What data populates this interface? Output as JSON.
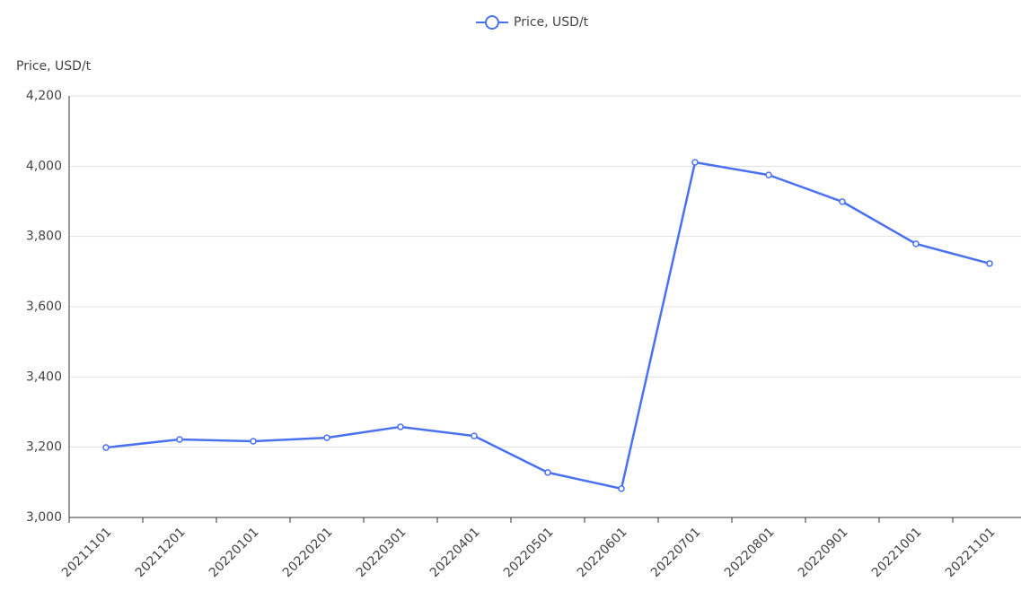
{
  "chart_data": {
    "type": "line",
    "y_axis_label": "Price, USD/t",
    "categories": [
      "20211101",
      "20211201",
      "20220101",
      "20220201",
      "20220301",
      "20220401",
      "20220501",
      "20220601",
      "20220701",
      "20220801",
      "20220901",
      "20221001",
      "20221101"
    ],
    "series": [
      {
        "name": "Price, USD/t",
        "color": "#4a72f0",
        "values": [
          3199,
          3222,
          3217,
          3227,
          3258,
          3232,
          3128,
          3082,
          4011,
          3975,
          3899,
          3779,
          3723
        ]
      }
    ],
    "ylim": [
      3000,
      4200
    ],
    "yticks": [
      {
        "value": 3000,
        "label": "3,000"
      },
      {
        "value": 3200,
        "label": "3,200"
      },
      {
        "value": 3400,
        "label": "3,400"
      },
      {
        "value": 3600,
        "label": "3,600"
      },
      {
        "value": 3800,
        "label": "3,800"
      },
      {
        "value": 4000,
        "label": "4,000"
      },
      {
        "value": 4200,
        "label": "4,200"
      }
    ],
    "grid": true,
    "legend": "top"
  }
}
